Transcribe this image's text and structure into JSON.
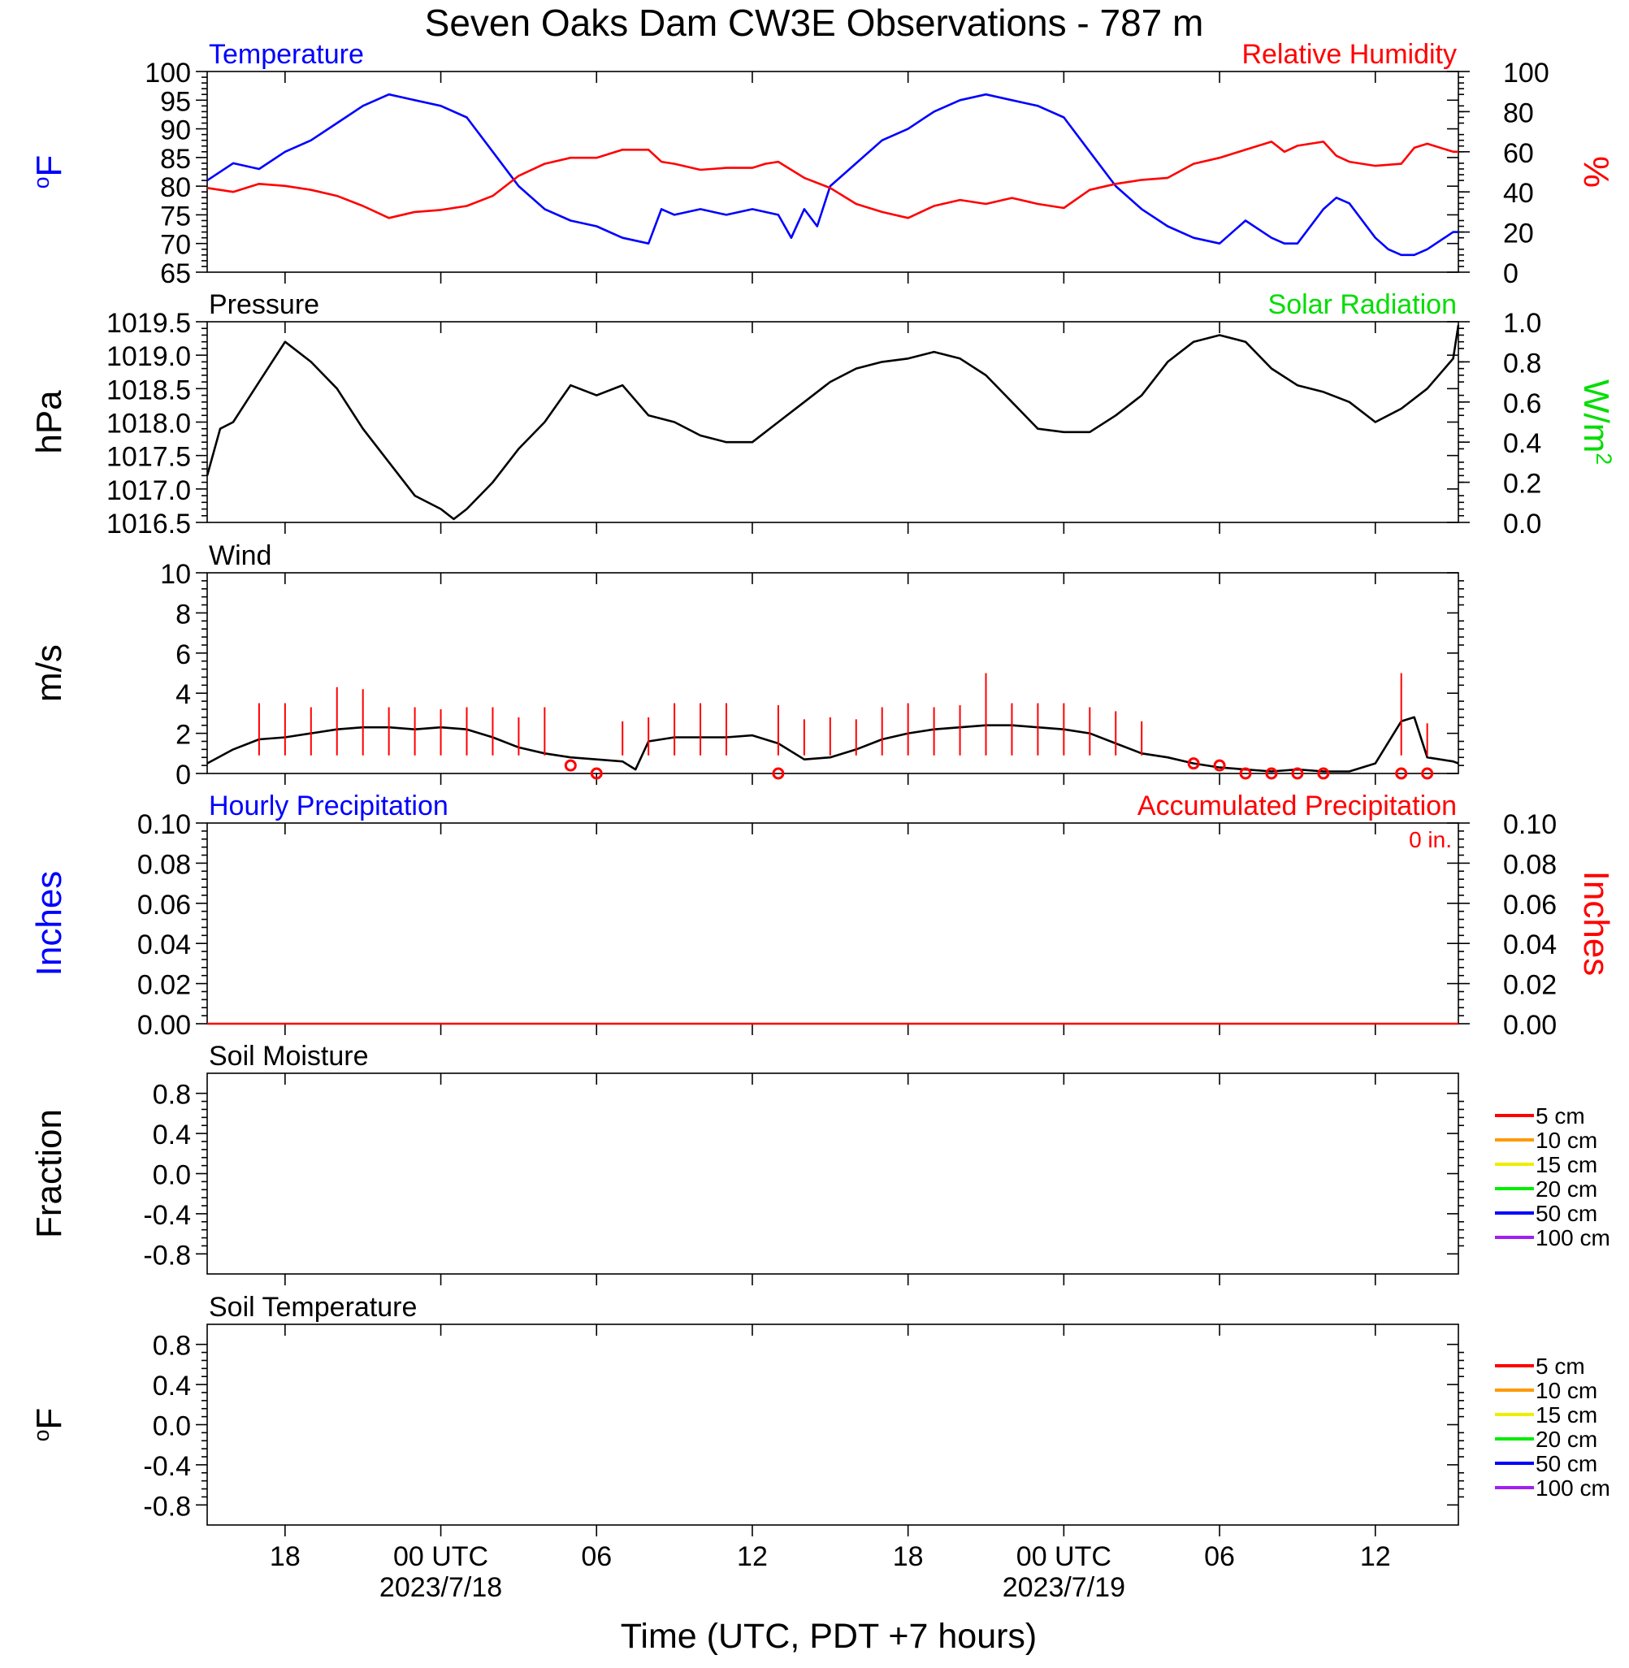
{
  "title": "Seven Oaks Dam CW3E Observations - 787 m",
  "x_axis": {
    "label": "Time (UTC, PDT +7 hours)",
    "range_hours_utc": [
      15,
      63.2
    ],
    "ticks": [
      {
        "hour": 18,
        "label": "18",
        "date": ""
      },
      {
        "hour": 24,
        "label": "00 UTC",
        "date": "2023/7/18"
      },
      {
        "hour": 30,
        "label": "06",
        "date": ""
      },
      {
        "hour": 36,
        "label": "12",
        "date": ""
      },
      {
        "hour": 42,
        "label": "18",
        "date": ""
      },
      {
        "hour": 48,
        "label": "00 UTC",
        "date": "2023/7/19"
      },
      {
        "hour": 54,
        "label": "06",
        "date": ""
      },
      {
        "hour": 60,
        "label": "12",
        "date": ""
      }
    ]
  },
  "colors": {
    "temperature": "#0000ff",
    "humidity": "#ff0000",
    "solar": "#00ee00",
    "black": "#000000",
    "precip_hourly": "#0000ff",
    "precip_accum": "#ff0000"
  },
  "chart_data": [
    {
      "type": "line",
      "panel": "temperature_humidity",
      "title_left": "Temperature",
      "title_right": "Relative Humidity",
      "ylabel_left": "oF",
      "ylabel_right": "%",
      "ylim_left": [
        65,
        100
      ],
      "yticks_left": [
        "65",
        "70",
        "75",
        "80",
        "85",
        "90",
        "95",
        "100"
      ],
      "ylim_right": [
        0,
        100
      ],
      "yticks_right": [
        "0",
        "20",
        "40",
        "60",
        "80",
        "100"
      ],
      "x_units": "hours UTC since 2023/7/17 00 UTC",
      "series": [
        {
          "name": "Temperature",
          "axis": "left",
          "color": "#0000ff",
          "x": [
            15,
            16,
            17,
            18,
            19,
            20,
            21,
            22,
            23,
            24,
            25,
            26,
            27,
            28,
            29,
            30,
            31,
            32,
            32.5,
            33,
            34,
            35,
            36,
            37,
            37.5,
            38,
            38.5,
            39,
            40,
            41,
            42,
            43,
            44,
            45,
            46,
            47,
            48,
            49,
            50,
            51,
            52,
            53,
            54,
            55,
            56,
            56.5,
            57,
            58,
            58.5,
            59,
            60,
            60.5,
            61,
            61.5,
            62,
            63,
            63.2
          ],
          "y": [
            81,
            84,
            83,
            86,
            88,
            91,
            94,
            96,
            95,
            94,
            92,
            86,
            80,
            76,
            74,
            73,
            71,
            70,
            76,
            75,
            76,
            75,
            76,
            75,
            71,
            76,
            73,
            80,
            84,
            88,
            90,
            93,
            95,
            96,
            95,
            94,
            92,
            86,
            80,
            76,
            73,
            71,
            70,
            74,
            71,
            70,
            70,
            76,
            78,
            77,
            71,
            69,
            68,
            68,
            69,
            72,
            72
          ]
        },
        {
          "name": "Relative Humidity",
          "axis": "right",
          "color": "#ff0000",
          "x": [
            15,
            16,
            17,
            18,
            19,
            20,
            21,
            22,
            23,
            24,
            25,
            26,
            27,
            28,
            29,
            30,
            31,
            32,
            32.5,
            33,
            34,
            35,
            36,
            36.5,
            37,
            38,
            39,
            40,
            41,
            42,
            43,
            44,
            45,
            46,
            47,
            48,
            49,
            50,
            51,
            52,
            53,
            54,
            55,
            56,
            56.5,
            57,
            58,
            58.5,
            59,
            60,
            61,
            61.5,
            62,
            63,
            63.2
          ],
          "y": [
            42,
            40,
            44,
            43,
            41,
            38,
            33,
            27,
            30,
            31,
            33,
            38,
            48,
            54,
            57,
            57,
            61,
            61,
            55,
            54,
            51,
            52,
            52,
            54,
            55,
            47,
            42,
            34,
            30,
            27,
            33,
            36,
            34,
            37,
            34,
            32,
            41,
            44,
            46,
            47,
            54,
            57,
            61,
            65,
            60,
            63,
            65,
            58,
            55,
            53,
            54,
            62,
            64,
            60,
            60
          ]
        },
        {
          "name": "Temperature grid",
          "axis": "none",
          "color": "#000000",
          "x": [],
          "y": []
        }
      ]
    },
    {
      "type": "line",
      "panel": "pressure",
      "title_left": "Pressure",
      "title_right": "Solar Radiation",
      "ylabel_left": "hPa",
      "ylabel_right": "W/m2",
      "ylim_left": [
        1016.5,
        1019.5
      ],
      "yticks_left": [
        "1016.5",
        "1017.0",
        "1017.5",
        "1018.0",
        "1018.5",
        "1019.0",
        "1019.5"
      ],
      "ylim_right": [
        0,
        1
      ],
      "yticks_right": [
        "0.0",
        "0.2",
        "0.4",
        "0.6",
        "0.8",
        "1.0"
      ],
      "series": [
        {
          "name": "Pressure",
          "axis": "left",
          "color": "#000000",
          "x": [
            15,
            15.5,
            16,
            17,
            18,
            19,
            20,
            21,
            22,
            23,
            24,
            24.5,
            25,
            26,
            27,
            28,
            29,
            30,
            31,
            32,
            33,
            34,
            35,
            36,
            37,
            38,
            39,
            40,
            41,
            42,
            43,
            44,
            45,
            46,
            47,
            48,
            49,
            50,
            51,
            52,
            53,
            54,
            55,
            56,
            57,
            58,
            59,
            60,
            61,
            62,
            63,
            63.2
          ],
          "y": [
            1017.2,
            1017.9,
            1018.0,
            1018.6,
            1019.2,
            1018.9,
            1018.5,
            1017.9,
            1017.4,
            1016.9,
            1016.7,
            1016.55,
            1016.7,
            1017.1,
            1017.6,
            1018.0,
            1018.55,
            1018.4,
            1018.55,
            1018.1,
            1018.0,
            1017.8,
            1017.7,
            1017.7,
            1018.0,
            1018.3,
            1018.6,
            1018.8,
            1018.9,
            1018.95,
            1019.05,
            1018.95,
            1018.7,
            1018.3,
            1017.9,
            1017.85,
            1017.85,
            1018.1,
            1018.4,
            1018.9,
            1019.2,
            1019.3,
            1019.2,
            1018.8,
            1018.55,
            1018.45,
            1018.3,
            1018.0,
            1018.2,
            1018.5,
            1018.95,
            1019.45
          ]
        }
      ]
    },
    {
      "type": "line",
      "panel": "wind",
      "title_left": "Wind",
      "ylabel_left": "m/s",
      "ylim_left": [
        0,
        10
      ],
      "yticks_left": [
        "0",
        "2",
        "4",
        "6",
        "8",
        "10"
      ],
      "series": [
        {
          "name": "Wind speed",
          "axis": "left",
          "color": "#000000",
          "x": [
            15,
            16,
            17,
            18,
            19,
            20,
            21,
            22,
            23,
            24,
            25,
            26,
            27,
            28,
            29,
            30,
            31,
            31.5,
            32,
            33,
            34,
            35,
            36,
            37,
            38,
            39,
            40,
            41,
            42,
            43,
            44,
            45,
            46,
            47,
            48,
            49,
            50,
            51,
            52,
            53,
            54,
            55,
            56,
            57,
            58,
            59,
            60,
            61,
            61.5,
            62,
            63,
            63.2
          ],
          "y": [
            0.5,
            1.2,
            1.7,
            1.8,
            2.0,
            2.2,
            2.3,
            2.3,
            2.2,
            2.3,
            2.2,
            1.8,
            1.3,
            1.0,
            0.8,
            0.7,
            0.6,
            0.2,
            1.6,
            1.8,
            1.8,
            1.8,
            1.9,
            1.5,
            0.7,
            0.8,
            1.2,
            1.7,
            2.0,
            2.2,
            2.3,
            2.4,
            2.4,
            2.3,
            2.2,
            2.0,
            1.5,
            1.0,
            0.8,
            0.5,
            0.3,
            0.2,
            0.1,
            0.2,
            0.1,
            0.1,
            0.5,
            2.6,
            2.8,
            0.8,
            0.6,
            0.5
          ]
        },
        {
          "name": "Wind barb stems (speed at barb hour)",
          "axis": "left",
          "color": "#ff0000",
          "x": [
            17,
            18,
            19,
            20,
            21,
            22,
            23,
            24,
            25,
            26,
            27,
            28,
            29,
            30,
            31,
            32,
            33,
            34,
            35,
            36,
            37,
            38,
            39,
            40,
            41,
            42,
            43,
            44,
            45,
            46,
            47,
            48,
            49,
            50,
            51,
            52,
            53,
            54,
            55,
            56,
            57,
            58,
            59,
            60,
            61,
            62,
            63
          ],
          "y": [
            3.5,
            3.5,
            3.3,
            4.3,
            4.2,
            3.3,
            3.3,
            3.2,
            3.3,
            3.3,
            2.8,
            3.3,
            0.3,
            0,
            2.6,
            2.8,
            3.5,
            3.5,
            3.5,
            0,
            3.4,
            2.7,
            2.8,
            2.7,
            3.3,
            3.5,
            3.3,
            3.4,
            5.0,
            3.5,
            3.5,
            3.5,
            3.3,
            3.1,
            2.6,
            0.3,
            0.3,
            0,
            0,
            0,
            0,
            0,
            0,
            0,
            5.0,
            2.5,
            0
          ]
        },
        {
          "name": "Calm markers",
          "axis": "left",
          "color": "#ff0000",
          "x": [
            29,
            30,
            37,
            53,
            54,
            55,
            56,
            57,
            58,
            61,
            62
          ],
          "y": [
            0.4,
            0,
            0,
            0.5,
            0.4,
            0,
            0,
            0,
            0,
            0,
            0
          ]
        }
      ]
    },
    {
      "type": "line",
      "panel": "precipitation",
      "title_left": "Hourly Precipitation",
      "title_right": "Accumulated Precipitation",
      "accumulated_total": "0 in.",
      "ylabel_left": "Inches",
      "ylabel_right": "Inches",
      "ylim_left": [
        0,
        0.1
      ],
      "yticks_left": [
        "0.00",
        "0.02",
        "0.04",
        "0.06",
        "0.08",
        "0.10"
      ],
      "yticks_right": [
        "0.00",
        "0.02",
        "0.04",
        "0.06",
        "0.08",
        "0.10"
      ],
      "series": [
        {
          "name": "Accumulated",
          "axis": "left",
          "color": "#ff0000",
          "x": [
            15,
            63.2
          ],
          "y": [
            0,
            0
          ]
        }
      ]
    },
    {
      "type": "line",
      "panel": "soil_moisture",
      "title_left": "Soil Moisture",
      "ylabel_left": "Fraction",
      "ylim_left": [
        -1,
        1
      ],
      "yticks_left": [
        "-0.8",
        "-0.4",
        "0.0",
        "0.4",
        "0.8"
      ],
      "series": [
        {
          "name": "5 cm",
          "color": "#ff0000",
          "x": [],
          "y": []
        },
        {
          "name": "10 cm",
          "color": "#ff9900",
          "x": [],
          "y": []
        },
        {
          "name": "15 cm",
          "color": "#eeee00",
          "x": [],
          "y": []
        },
        {
          "name": "20 cm",
          "color": "#00ee00",
          "x": [],
          "y": []
        },
        {
          "name": "50 cm",
          "color": "#0000ff",
          "x": [],
          "y": []
        },
        {
          "name": "100 cm",
          "color": "#a020f0",
          "x": [],
          "y": []
        }
      ]
    },
    {
      "type": "line",
      "panel": "soil_temperature",
      "title_left": "Soil Temperature",
      "ylabel_left": "oF",
      "ylim_left": [
        -1,
        1
      ],
      "yticks_left": [
        "-0.8",
        "-0.4",
        "0.0",
        "0.4",
        "0.8"
      ],
      "series": [
        {
          "name": "5 cm",
          "color": "#ff0000",
          "x": [],
          "y": []
        },
        {
          "name": "10 cm",
          "color": "#ff9900",
          "x": [],
          "y": []
        },
        {
          "name": "15 cm",
          "color": "#eeee00",
          "x": [],
          "y": []
        },
        {
          "name": "20 cm",
          "color": "#00ee00",
          "x": [],
          "y": []
        },
        {
          "name": "50 cm",
          "color": "#0000ff",
          "x": [],
          "y": []
        },
        {
          "name": "100 cm",
          "color": "#a020f0",
          "x": [],
          "y": []
        }
      ]
    }
  ]
}
